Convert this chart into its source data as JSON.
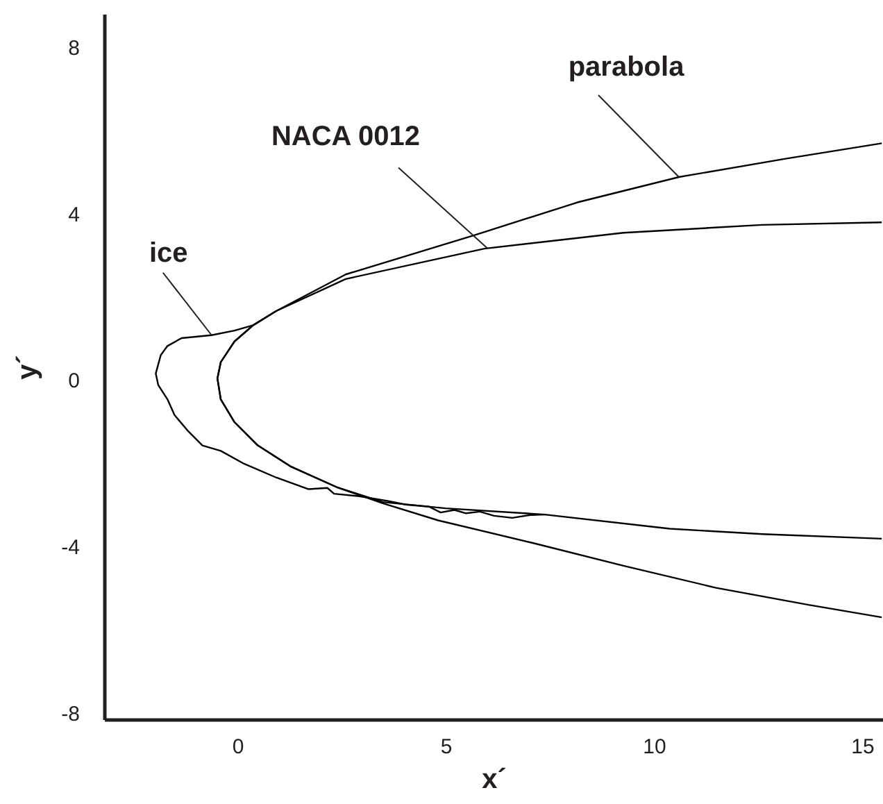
{
  "chart_data": {
    "type": "line",
    "xlabel": "x´",
    "ylabel": "y´",
    "xlim": [
      -3.2,
      15.5
    ],
    "ylim": [
      -8.15,
      8.8
    ],
    "xticks": [
      0,
      5,
      10,
      15
    ],
    "yticks": [
      -8,
      -4,
      0,
      4,
      8
    ],
    "grid": false,
    "marker": "none",
    "line_style": "solid",
    "series": [
      {
        "color": "#000000",
        "x": [
          15.47,
          13.16,
          10.6,
          8.16,
          5.71,
          2.6,
          0.93,
          0.38,
          -0.07,
          -0.4,
          -0.48,
          -0.4,
          -0.07,
          0.49,
          1.27,
          2.38,
          3.49,
          4.82,
          7.04,
          9.27,
          11.49,
          13.71,
          15.47
        ],
        "values": [
          5.69,
          5.32,
          4.88,
          4.27,
          3.49,
          2.54,
          1.66,
          1.32,
          0.93,
          0.43,
          0.04,
          -0.46,
          -1.01,
          -1.57,
          -2.07,
          -2.57,
          -2.96,
          -3.37,
          -3.9,
          -4.46,
          -4.99,
          -5.4,
          -5.7
        ]
      },
      {
        "color": "#000000",
        "x": [
          15.47,
          12.6,
          9.27,
          5.93,
          2.6,
          0.93,
          0.38,
          -0.07,
          -0.4,
          -0.48,
          -0.4,
          -0.07,
          0.49,
          1.27,
          2.38,
          3.49,
          5.0,
          7.38,
          10.38,
          12.6,
          15.47
        ],
        "values": [
          3.79,
          3.73,
          3.54,
          3.16,
          2.43,
          1.66,
          1.32,
          0.93,
          0.43,
          0.04,
          -0.46,
          -1.01,
          -1.57,
          -2.07,
          -2.57,
          -2.93,
          -3.08,
          -3.23,
          -3.57,
          -3.7,
          -3.81
        ]
      },
      {
        "color": "#000000",
        "x": [
          0.38,
          -0.07,
          -0.62,
          -1.34,
          -1.68,
          -1.84,
          -1.96,
          -1.9,
          -1.68,
          -1.51,
          -1.18,
          -0.84,
          -0.4,
          0.16,
          0.93,
          1.71,
          2.16,
          2.32,
          2.93,
          3.6,
          4.04,
          4.6,
          4.88,
          5.21,
          5.49,
          5.82,
          6.16,
          6.6,
          7.04,
          7.38
        ],
        "values": [
          1.32,
          1.19,
          1.08,
          1.01,
          0.82,
          0.6,
          0.16,
          -0.12,
          -0.46,
          -0.84,
          -1.23,
          -1.57,
          -1.7,
          -2.01,
          -2.34,
          -2.62,
          -2.59,
          -2.73,
          -2.79,
          -2.9,
          -2.99,
          -3.04,
          -3.18,
          -3.12,
          -3.2,
          -3.16,
          -3.26,
          -3.31,
          -3.24,
          -3.23
        ]
      }
    ],
    "annotations": [
      {
        "text": "parabola",
        "x": 10.6,
        "y": 4.88
      },
      {
        "text": "NACA 0012",
        "x": 6.0,
        "y": 3.17
      },
      {
        "text": "ice",
        "x": -0.62,
        "y": 1.08
      }
    ]
  }
}
